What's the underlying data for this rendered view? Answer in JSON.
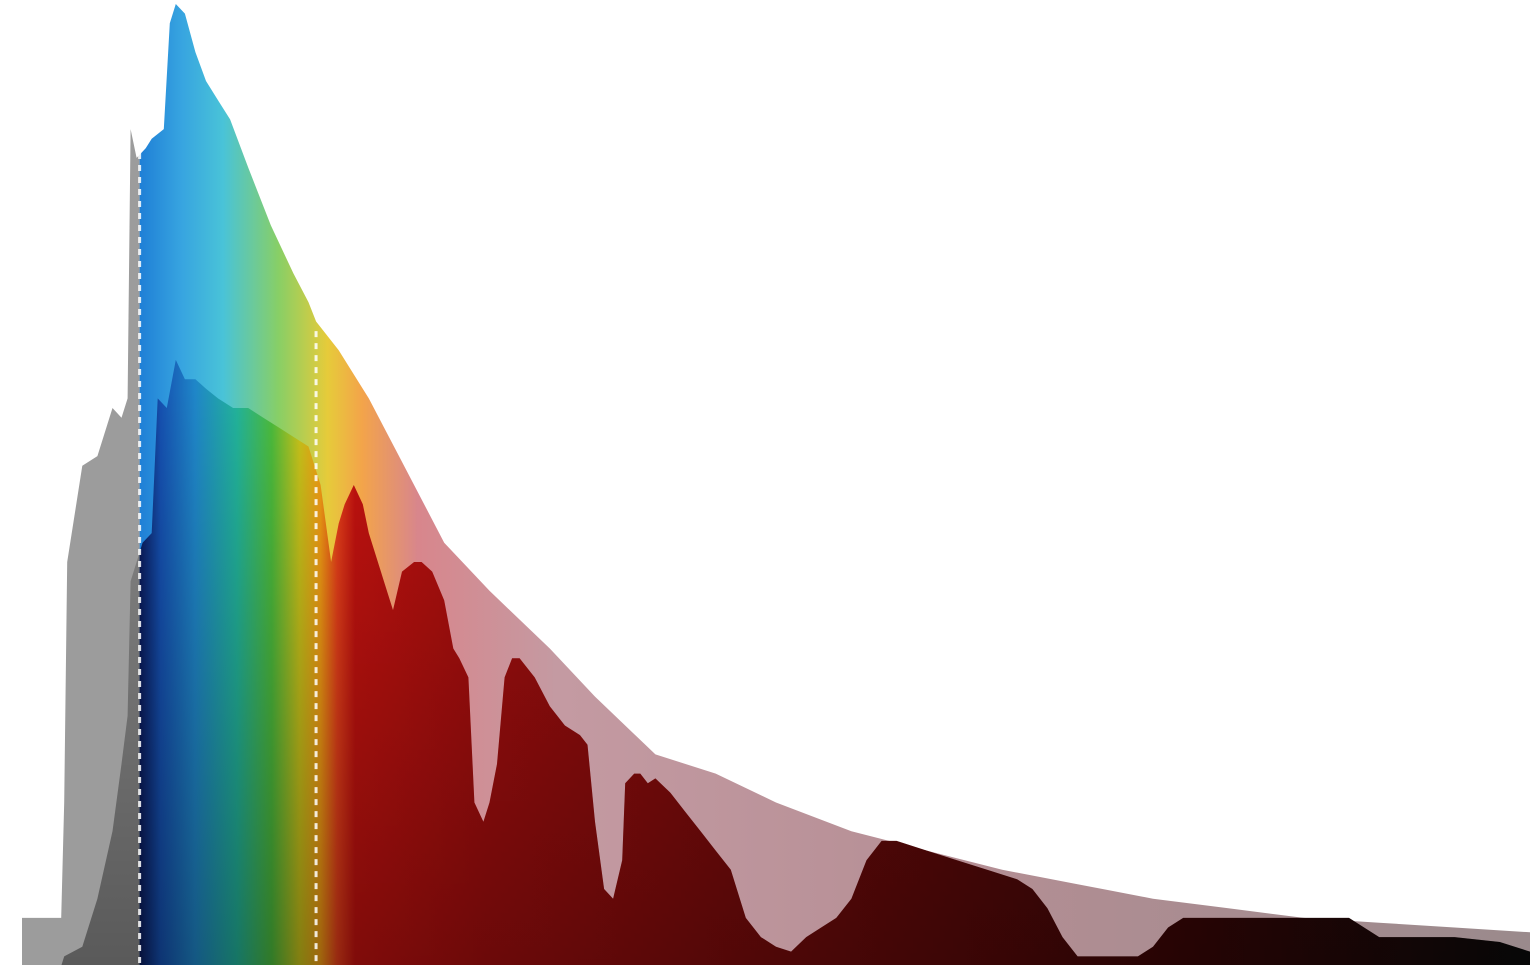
{
  "chart_data": {
    "type": "area",
    "title": "",
    "xlabel": "",
    "ylabel": "",
    "grid": false,
    "legend": "none",
    "xlim": [
      0,
      100
    ],
    "ylim": [
      0,
      100
    ],
    "visible_band": {
      "start": 7.8,
      "end": 19.5
    },
    "colors": {
      "envelope": "#b07f86",
      "envelope_uv": "#9c9c9c",
      "surface_uv": "#8a8a8a",
      "marker": "#ffffff"
    },
    "spectrum_colors": [
      "#0a1a5a",
      "#1550b0",
      "#1f86c8",
      "#22b39a",
      "#4cbb3c",
      "#c8c21a",
      "#f39c14",
      "#e8401a",
      "#c4120f",
      "#a50e0e",
      "#6e0a0a",
      "#3a0606",
      "#0a0a0a"
    ],
    "envelope_colors": [
      "#1f7fd6",
      "#37a4e0",
      "#49c3d8",
      "#88cf66",
      "#e6cb3a",
      "#f3a44a",
      "#d8868c",
      "#c49aa2",
      "#b48e94",
      "#9a8a8c"
    ],
    "series": [
      {
        "points": [
          [
            0,
            5
          ],
          [
            2.6,
            5
          ],
          [
            2.8,
            17
          ],
          [
            3,
            42
          ],
          [
            4,
            52
          ],
          [
            5,
            53
          ],
          [
            6,
            58
          ],
          [
            6.6,
            57
          ],
          [
            7,
            59
          ],
          [
            7.2,
            87
          ],
          [
            7.6,
            84
          ],
          [
            8.2,
            85
          ],
          [
            8.6,
            86
          ],
          [
            9.4,
            87
          ],
          [
            9.8,
            98
          ],
          [
            10.2,
            100
          ],
          [
            10.8,
            99
          ],
          [
            11.5,
            95
          ],
          [
            12.2,
            92
          ],
          [
            13,
            90
          ],
          [
            13.8,
            88
          ],
          [
            15,
            83
          ],
          [
            16.5,
            77
          ],
          [
            18,
            72
          ],
          [
            19,
            69
          ],
          [
            19.5,
            67
          ],
          [
            21,
            64
          ],
          [
            23,
            59
          ],
          [
            25,
            53
          ],
          [
            28,
            44
          ],
          [
            31,
            39
          ],
          [
            35,
            33
          ],
          [
            38,
            28
          ],
          [
            42,
            22
          ],
          [
            46,
            20
          ],
          [
            50,
            17
          ],
          [
            55,
            14
          ],
          [
            60,
            12
          ],
          [
            65,
            10
          ],
          [
            70,
            8.5
          ],
          [
            75,
            7
          ],
          [
            80,
            6
          ],
          [
            85,
            5
          ],
          [
            90,
            4.5
          ],
          [
            95,
            4
          ],
          [
            100,
            3.5
          ]
        ]
      },
      {
        "points": [
          [
            0,
            0
          ],
          [
            2.6,
            0
          ],
          [
            2.8,
            1
          ],
          [
            4,
            2
          ],
          [
            5,
            7
          ],
          [
            6,
            14
          ],
          [
            6.6,
            21
          ],
          [
            7,
            26
          ],
          [
            7.2,
            40
          ],
          [
            7.6,
            42
          ],
          [
            8,
            44
          ],
          [
            8.6,
            45
          ],
          [
            9,
            59
          ],
          [
            9.6,
            58
          ],
          [
            10.2,
            63
          ],
          [
            10.8,
            61
          ],
          [
            11.5,
            61
          ],
          [
            12.2,
            60
          ],
          [
            13,
            59
          ],
          [
            14,
            58
          ],
          [
            15,
            58
          ],
          [
            16,
            57
          ],
          [
            17,
            56
          ],
          [
            18,
            55
          ],
          [
            19,
            54
          ],
          [
            19.8,
            50
          ],
          [
            20.5,
            42
          ],
          [
            21,
            46
          ],
          [
            21.4,
            48
          ],
          [
            22,
            50
          ],
          [
            22.6,
            48
          ],
          [
            23,
            45
          ],
          [
            24,
            40
          ],
          [
            24.6,
            37
          ],
          [
            25.2,
            41
          ],
          [
            26,
            42
          ],
          [
            26.5,
            42
          ],
          [
            27.2,
            41
          ],
          [
            28,
            38
          ],
          [
            28.6,
            33
          ],
          [
            29,
            32
          ],
          [
            29.6,
            30
          ],
          [
            30,
            17
          ],
          [
            30.6,
            15
          ],
          [
            31,
            17
          ],
          [
            31.5,
            21
          ],
          [
            32,
            30
          ],
          [
            32.5,
            32
          ],
          [
            33,
            32
          ],
          [
            34,
            30
          ],
          [
            35,
            27
          ],
          [
            36,
            25
          ],
          [
            37,
            24
          ],
          [
            37.5,
            23
          ],
          [
            38,
            15
          ],
          [
            38.6,
            8
          ],
          [
            39.2,
            7
          ],
          [
            39.8,
            11
          ],
          [
            40,
            19
          ],
          [
            40.6,
            20
          ],
          [
            41,
            20
          ],
          [
            41.5,
            19
          ],
          [
            42,
            19.5
          ],
          [
            43,
            18
          ],
          [
            44,
            16
          ],
          [
            45,
            14
          ],
          [
            46,
            12
          ],
          [
            47,
            10
          ],
          [
            48,
            5
          ],
          [
            49,
            3
          ],
          [
            50,
            2
          ],
          [
            51,
            1.5
          ],
          [
            52,
            3
          ],
          [
            53,
            4
          ],
          [
            54,
            5
          ],
          [
            55,
            7
          ],
          [
            56,
            11
          ],
          [
            57,
            13
          ],
          [
            58,
            13
          ],
          [
            60,
            12
          ],
          [
            62,
            11
          ],
          [
            64,
            10
          ],
          [
            66,
            9
          ],
          [
            67,
            8
          ],
          [
            68,
            6
          ],
          [
            69,
            3
          ],
          [
            70,
            1
          ],
          [
            72,
            1
          ],
          [
            74,
            1
          ],
          [
            75,
            2
          ],
          [
            76,
            4
          ],
          [
            77,
            5
          ],
          [
            78,
            5
          ],
          [
            80,
            5
          ],
          [
            85,
            5
          ],
          [
            88,
            5
          ],
          [
            89,
            4
          ],
          [
            90,
            3
          ],
          [
            92,
            3
          ],
          [
            95,
            3
          ],
          [
            98,
            2.5
          ],
          [
            100,
            1.5
          ]
        ]
      }
    ]
  }
}
